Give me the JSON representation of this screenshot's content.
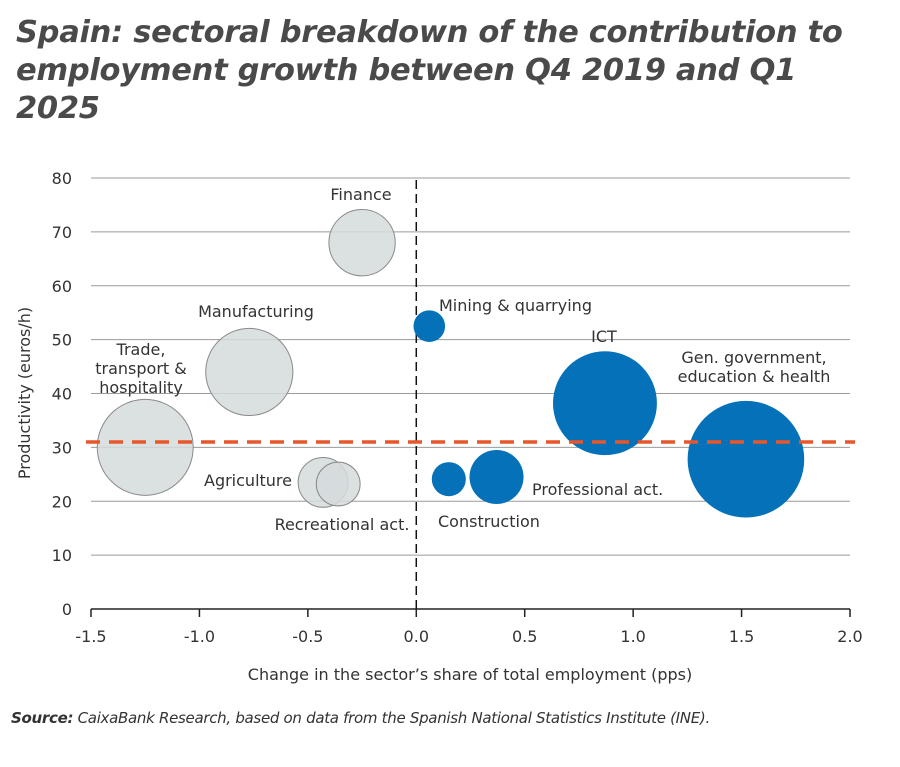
{
  "chart_data": {
    "type": "bubble",
    "title": "Spain: sectoral breakdown of the contribution to employment growth between Q4 2019 and Q1 2025",
    "xlabel": "Change in the sector’s share of total employment (pps)",
    "ylabel": "Productivity (euros/h)",
    "xlim": [
      -1.5,
      2.0
    ],
    "ylim": [
      0,
      80
    ],
    "xticks": [
      "-1.5",
      "-1.0",
      "-0.5",
      "0.0",
      "0.5",
      "1.0",
      "1.5",
      "2.0"
    ],
    "yticks": [
      "0",
      "10",
      "20",
      "30",
      "40",
      "50",
      "60",
      "70",
      "80"
    ],
    "grid": "horizontal",
    "vertical_reference_x": 0,
    "reference_line": {
      "y": 31,
      "color": "#e8572a",
      "style": "dashed"
    },
    "colors": {
      "negative": "#d5dadc",
      "positive": "#0571b8"
    },
    "points": [
      {
        "label": "Finance",
        "x": -0.25,
        "y": 68,
        "size": 11,
        "group": "negative"
      },
      {
        "label": "Manufacturing",
        "x": -0.77,
        "y": 44,
        "size": 19,
        "group": "negative"
      },
      {
        "label": "Trade, transport & hospitality",
        "label_lines": [
          "Trade,",
          "transport &",
          "hospitality"
        ],
        "x": -1.25,
        "y": 30,
        "size": 23,
        "group": "negative"
      },
      {
        "label": "Agriculture",
        "x": -0.43,
        "y": 23.5,
        "size": 6.2,
        "group": "negative"
      },
      {
        "label": "Recreational act.",
        "x": -0.36,
        "y": 23.2,
        "size": 4.8,
        "group": "negative"
      },
      {
        "label": "Mining & quarrying",
        "x": 0.06,
        "y": 52.5,
        "size": 2.5,
        "group": "positive"
      },
      {
        "label": "Construction",
        "x": 0.15,
        "y": 24.1,
        "size": 2.9,
        "group": "positive"
      },
      {
        "label": "Professional act.",
        "x": 0.37,
        "y": 24.5,
        "size": 7.3,
        "group": "positive"
      },
      {
        "label": "ICT",
        "x": 0.87,
        "y": 38.2,
        "size": 27,
        "group": "positive"
      },
      {
        "label": "Gen. government, education & health",
        "label_lines": [
          "Gen. government,",
          "education & health"
        ],
        "x": 1.52,
        "y": 27.8,
        "size": 34,
        "group": "positive"
      }
    ]
  },
  "source": {
    "prefix": "Source:",
    "text": " CaixaBank Research, based on data from the Spanish National Statistics Institute (INE)."
  }
}
